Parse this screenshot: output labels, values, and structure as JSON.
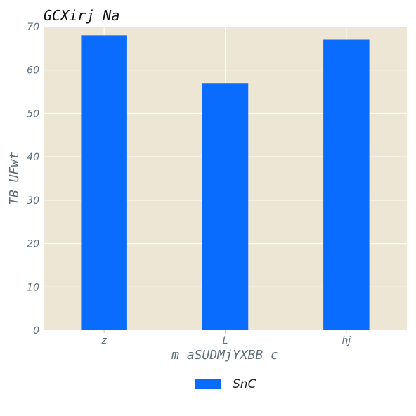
{
  "chart_data": {
    "type": "bar",
    "title": "GCXirj Na",
    "xlabel": "m aSUDMjYXBB c",
    "ylabel": "TB UFwt",
    "categories": [
      "z",
      "L",
      "hj"
    ],
    "series": [
      {
        "name": "SnC",
        "values": [
          68,
          57,
          67
        ]
      }
    ],
    "ylim": [
      0,
      70
    ],
    "yticks": [
      0,
      10,
      20,
      30,
      40,
      50,
      60,
      70
    ],
    "grid": true,
    "legend": "bottom-center",
    "colors": {
      "plot_bg": "#ede6d4",
      "bar": "#0a6cff",
      "grid": "#ffffff"
    }
  }
}
